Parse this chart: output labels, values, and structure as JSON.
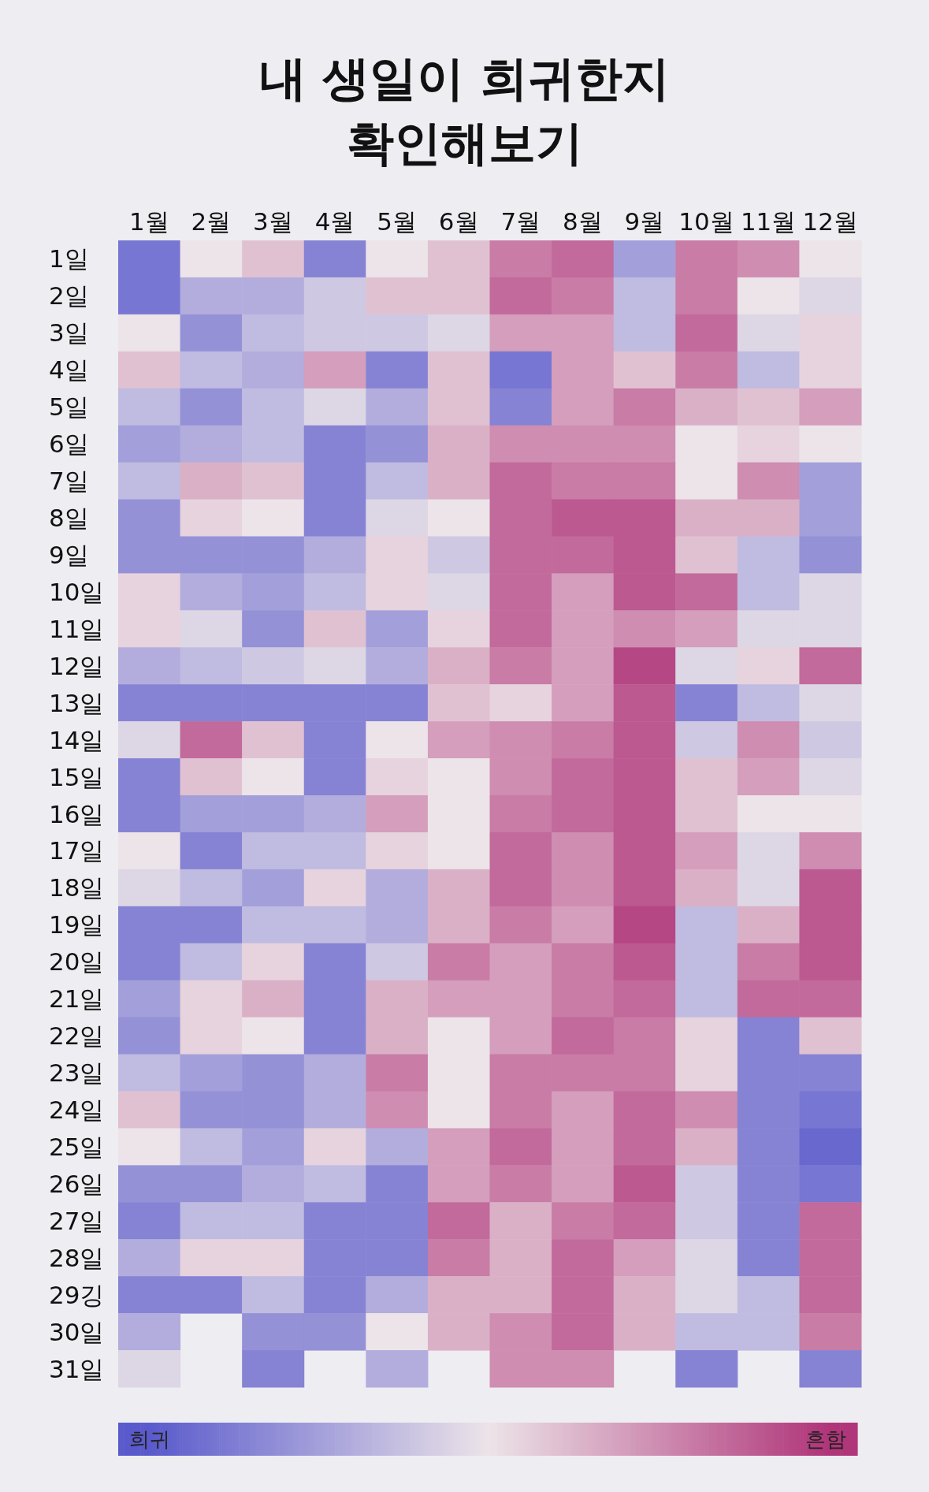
{
  "chart_data": {
    "type": "heatmap",
    "title": "내 생일이 희귀한지\n확인해보기",
    "categories": [
      "1월",
      "2월",
      "3월",
      "4월",
      "5월",
      "6월",
      "7월",
      "8월",
      "9월",
      "10월",
      "11월",
      "12월"
    ],
    "y_categories": [
      "1일",
      "2일",
      "3일",
      "4일",
      "5일",
      "6일",
      "7일",
      "8일",
      "9일",
      "10일",
      "11일",
      "12일",
      "13일",
      "14일",
      "15일",
      "16일",
      "17일",
      "18일",
      "19일",
      "20일",
      "21일",
      "22일",
      "23일",
      "24일",
      "25일",
      "26일",
      "27일",
      "28일",
      "29깅",
      "30일",
      "31일"
    ],
    "cells": [
      [
        0.1,
        0.5,
        0.6,
        0.15,
        0.5,
        0.6,
        0.8,
        0.85,
        0.25,
        0.8,
        0.75,
        0.5
      ],
      [
        0.1,
        0.3,
        0.3,
        0.4,
        0.6,
        0.6,
        0.85,
        0.8,
        0.35,
        0.8,
        0.5,
        0.45
      ],
      [
        0.5,
        0.2,
        0.35,
        0.4,
        0.4,
        0.45,
        0.7,
        0.7,
        0.35,
        0.85,
        0.45,
        0.55
      ],
      [
        0.6,
        0.35,
        0.3,
        0.7,
        0.15,
        0.6,
        0.1,
        0.7,
        0.6,
        0.8,
        0.35,
        0.55
      ],
      [
        0.35,
        0.2,
        0.35,
        0.45,
        0.3,
        0.6,
        0.15,
        0.7,
        0.8,
        0.65,
        0.6,
        0.7
      ],
      [
        0.25,
        0.3,
        0.35,
        0.15,
        0.2,
        0.65,
        0.75,
        0.75,
        0.75,
        0.5,
        0.55,
        0.5
      ],
      [
        0.35,
        0.65,
        0.6,
        0.15,
        0.35,
        0.65,
        0.85,
        0.8,
        0.8,
        0.5,
        0.75,
        0.25
      ],
      [
        0.2,
        0.55,
        0.5,
        0.15,
        0.45,
        0.5,
        0.85,
        0.9,
        0.9,
        0.65,
        0.65,
        0.25
      ],
      [
        0.2,
        0.2,
        0.2,
        0.3,
        0.55,
        0.4,
        0.85,
        0.85,
        0.9,
        0.6,
        0.35,
        0.2
      ],
      [
        0.55,
        0.3,
        0.25,
        0.35,
        0.55,
        0.45,
        0.85,
        0.7,
        0.9,
        0.85,
        0.35,
        0.45
      ],
      [
        0.55,
        0.45,
        0.2,
        0.6,
        0.25,
        0.55,
        0.85,
        0.7,
        0.75,
        0.7,
        0.45,
        0.45
      ],
      [
        0.3,
        0.35,
        0.4,
        0.45,
        0.3,
        0.65,
        0.8,
        0.7,
        0.95,
        0.45,
        0.55,
        0.85
      ],
      [
        0.15,
        0.15,
        0.15,
        0.15,
        0.15,
        0.6,
        0.55,
        0.7,
        0.9,
        0.15,
        0.35,
        0.45
      ],
      [
        0.45,
        0.85,
        0.6,
        0.15,
        0.5,
        0.7,
        0.75,
        0.8,
        0.9,
        0.4,
        0.75,
        0.4
      ],
      [
        0.15,
        0.6,
        0.5,
        0.15,
        0.55,
        0.5,
        0.75,
        0.85,
        0.9,
        0.6,
        0.7,
        0.45
      ],
      [
        0.15,
        0.25,
        0.25,
        0.3,
        0.7,
        0.5,
        0.8,
        0.85,
        0.9,
        0.6,
        0.5,
        0.5
      ],
      [
        0.5,
        0.15,
        0.35,
        0.35,
        0.55,
        0.5,
        0.85,
        0.75,
        0.9,
        0.7,
        0.45,
        0.75
      ],
      [
        0.45,
        0.35,
        0.25,
        0.55,
        0.3,
        0.65,
        0.85,
        0.75,
        0.9,
        0.65,
        0.45,
        0.9
      ],
      [
        0.15,
        0.15,
        0.35,
        0.35,
        0.3,
        0.65,
        0.8,
        0.7,
        0.95,
        0.35,
        0.65,
        0.9
      ],
      [
        0.15,
        0.35,
        0.55,
        0.15,
        0.4,
        0.8,
        0.7,
        0.8,
        0.9,
        0.35,
        0.8,
        0.9
      ],
      [
        0.25,
        0.55,
        0.65,
        0.15,
        0.65,
        0.7,
        0.7,
        0.8,
        0.85,
        0.35,
        0.85,
        0.85
      ],
      [
        0.2,
        0.55,
        0.5,
        0.15,
        0.65,
        0.5,
        0.7,
        0.85,
        0.8,
        0.55,
        0.15,
        0.6
      ],
      [
        0.35,
        0.25,
        0.2,
        0.3,
        0.8,
        0.5,
        0.8,
        0.8,
        0.8,
        0.55,
        0.15,
        0.15
      ],
      [
        0.6,
        0.2,
        0.2,
        0.3,
        0.75,
        0.5,
        0.8,
        0.7,
        0.85,
        0.75,
        0.15,
        0.1
      ],
      [
        0.5,
        0.35,
        0.25,
        0.55,
        0.3,
        0.7,
        0.85,
        0.7,
        0.85,
        0.65,
        0.15,
        0.05
      ],
      [
        0.2,
        0.2,
        0.3,
        0.35,
        0.15,
        0.7,
        0.8,
        0.7,
        0.9,
        0.4,
        0.15,
        0.1
      ],
      [
        0.15,
        0.35,
        0.35,
        0.15,
        0.15,
        0.85,
        0.65,
        0.8,
        0.85,
        0.4,
        0.15,
        0.85
      ],
      [
        0.3,
        0.55,
        0.55,
        0.15,
        0.15,
        0.8,
        0.65,
        0.85,
        0.7,
        0.45,
        0.15,
        0.85
      ],
      [
        0.15,
        0.15,
        0.35,
        0.15,
        0.3,
        0.65,
        0.65,
        0.85,
        0.65,
        0.45,
        0.35,
        0.85
      ],
      [
        0.3,
        null,
        0.2,
        0.2,
        0.5,
        0.65,
        0.75,
        0.85,
        0.65,
        0.35,
        0.35,
        0.8
      ],
      [
        0.45,
        null,
        0.15,
        null,
        0.3,
        null,
        0.75,
        0.75,
        null,
        0.15,
        null,
        0.15
      ]
    ],
    "clim": [
      0,
      1
    ],
    "cticks": [
      {
        "value": 0,
        "label": "희귀"
      },
      {
        "value": 1,
        "label": "흔함"
      }
    ]
  }
}
